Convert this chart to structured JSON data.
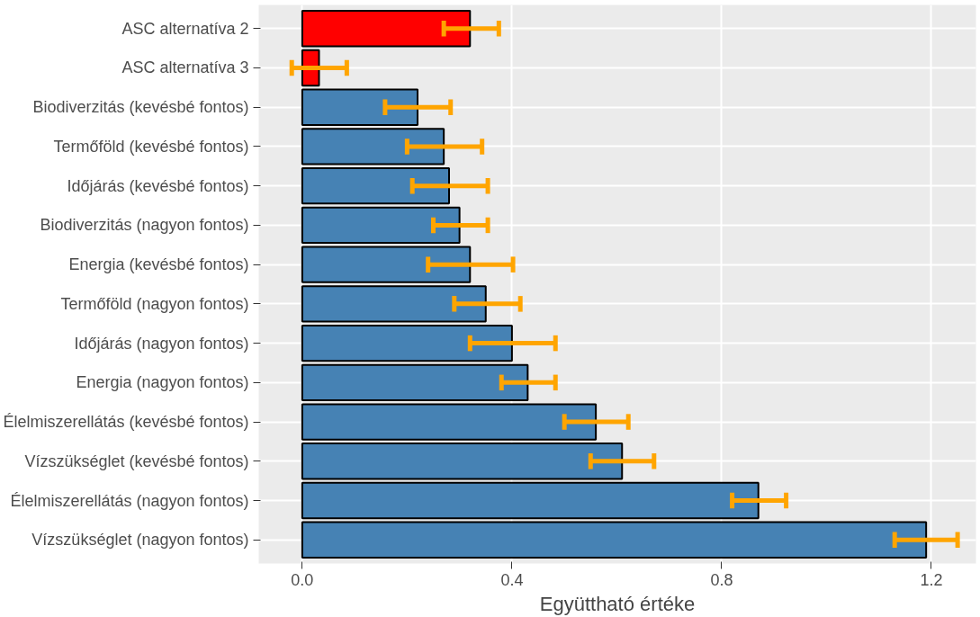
{
  "chart_data": {
    "type": "bar",
    "orientation": "horizontal",
    "xlabel": "Együttható értéke",
    "categories": [
      "ASC alternatíva 2",
      "ASC alternatíva 3",
      "Biodiverzitás (kevésbé fontos)",
      "Termőföld (kevésbé fontos)",
      "Időjárás (kevésbé fontos)",
      "Biodiverzitás (nagyon fontos)",
      "Energia (kevésbé fontos)",
      "Termőföld (nagyon fontos)",
      "Időjárás (nagyon fontos)",
      "Energia (nagyon fontos)",
      "Élelmiszerellátás (kevésbé fontos)",
      "Vízszükséglet (kevésbé fontos)",
      "Élelmiszerellátás (nagyon fontos)",
      "Vízszükséglet (nagyon fontos)"
    ],
    "values": [
      0.32,
      0.032,
      0.22,
      0.27,
      0.28,
      0.3,
      0.32,
      0.35,
      0.4,
      0.43,
      0.56,
      0.61,
      0.87,
      1.19
    ],
    "colors": [
      "#ff0000",
      "#ff0000",
      "#4682b4",
      "#4682b4",
      "#4682b4",
      "#4682b4",
      "#4682b4",
      "#4682b4",
      "#4682b4",
      "#4682b4",
      "#4682b4",
      "#4682b4",
      "#4682b4",
      "#4682b4"
    ],
    "errors": [
      [
        0.27,
        0.375
      ],
      [
        -0.02,
        0.085
      ],
      [
        0.158,
        0.283
      ],
      [
        0.2,
        0.343
      ],
      [
        0.21,
        0.354
      ],
      [
        0.25,
        0.354
      ],
      [
        0.24,
        0.402
      ],
      [
        0.29,
        0.416
      ],
      [
        0.32,
        0.483
      ],
      [
        0.38,
        0.483
      ],
      [
        0.5,
        0.622
      ],
      [
        0.55,
        0.671
      ],
      [
        0.82,
        0.923
      ],
      [
        1.13,
        1.25
      ]
    ],
    "xlim": [
      -0.083,
      1.285
    ],
    "xticks": [
      {
        "value": 0,
        "label": "0.0"
      },
      0.4,
      0.8,
      1.2
    ],
    "grid": true
  }
}
